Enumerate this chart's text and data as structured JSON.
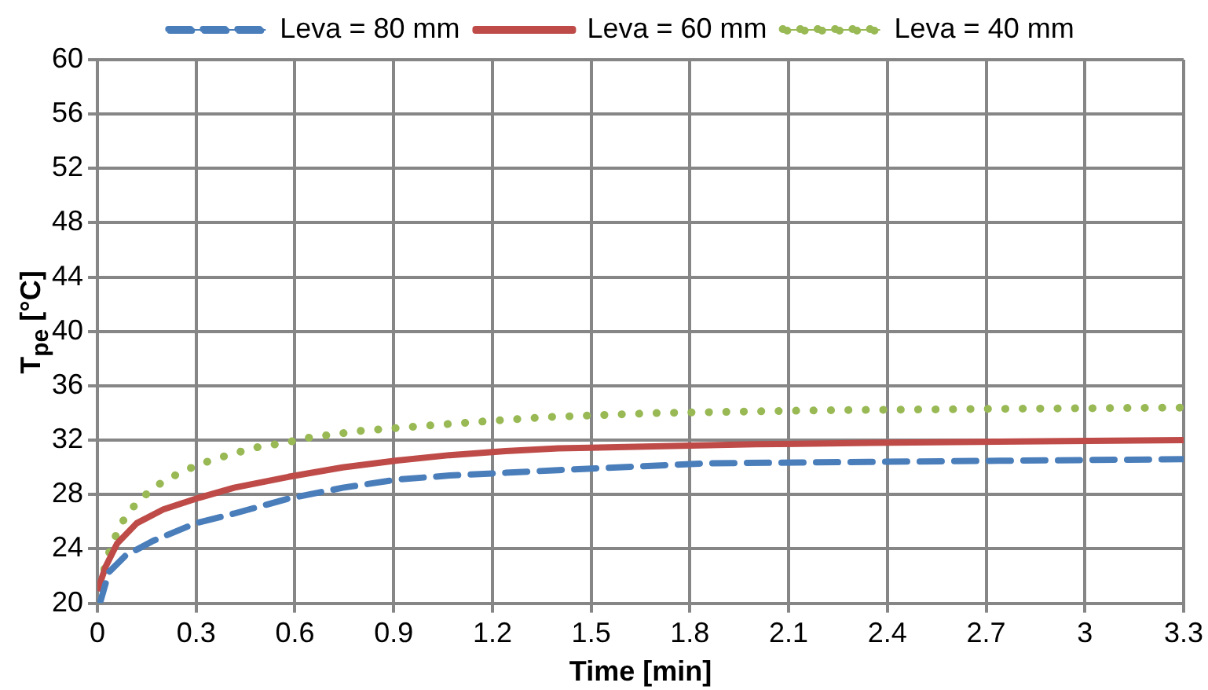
{
  "chart_data": {
    "type": "line",
    "xlabel": "Time [min]",
    "ylabel": "T$_{pe}$ [°C]",
    "xlim": [
      0,
      3.3
    ],
    "xticks": [
      0,
      0.3,
      0.6,
      0.9,
      1.2,
      1.5,
      1.8,
      2.1,
      2.4,
      2.7,
      3,
      3.3
    ],
    "ylim": [
      20,
      60
    ],
    "yticks": [
      20,
      24,
      28,
      32,
      36,
      40,
      44,
      48,
      52,
      56,
      60
    ],
    "grid": true,
    "legend": "top",
    "marker": "none",
    "series": [
      {
        "name": "Leva = 80 mm",
        "color": "#4a7ebb",
        "line_style": "dashed",
        "x": [
          0,
          0.01,
          0.035,
          0.085,
          0.17,
          0.3,
          0.415,
          0.58,
          0.745,
          0.91,
          1.07,
          1.24,
          1.4,
          1.85,
          2.34,
          2.8,
          3.3
        ],
        "values": [
          20,
          20.2,
          22.3,
          23.5,
          24.6,
          25.9,
          26.6,
          27.7,
          28.5,
          29.1,
          29.4,
          29.6,
          29.8,
          30.3,
          30.4,
          30.5,
          30.6
        ]
      },
      {
        "name": "Leva = 60 mm",
        "color": "#be4b48",
        "line_style": "solid",
        "x": [
          0,
          0.025,
          0.06,
          0.12,
          0.2,
          0.3,
          0.415,
          0.58,
          0.745,
          0.91,
          1.07,
          1.24,
          1.4,
          2.0,
          2.35,
          2.8,
          3.3
        ],
        "values": [
          20.9,
          22.7,
          24.4,
          25.9,
          26.9,
          27.7,
          28.5,
          29.3,
          30.0,
          30.5,
          30.9,
          31.2,
          31.4,
          31.7,
          31.8,
          31.9,
          32.0
        ]
      },
      {
        "name": "Leva = 40 mm",
        "color": "#98b954",
        "line_style": "dotted",
        "x": [
          0,
          0.016,
          0.04,
          0.073,
          0.122,
          0.183,
          0.257,
          0.331,
          0.41,
          0.489,
          0.567,
          0.646,
          0.805,
          0.963,
          1.126,
          1.363,
          1.7,
          2.2,
          2.7,
          3.3
        ],
        "values": [
          20,
          22.1,
          24.1,
          25.9,
          27.5,
          28.7,
          29.7,
          30.4,
          31.0,
          31.5,
          31.8,
          32.2,
          32.7,
          33.0,
          33.3,
          33.7,
          34.0,
          34.2,
          34.3,
          34.4
        ]
      }
    ]
  }
}
